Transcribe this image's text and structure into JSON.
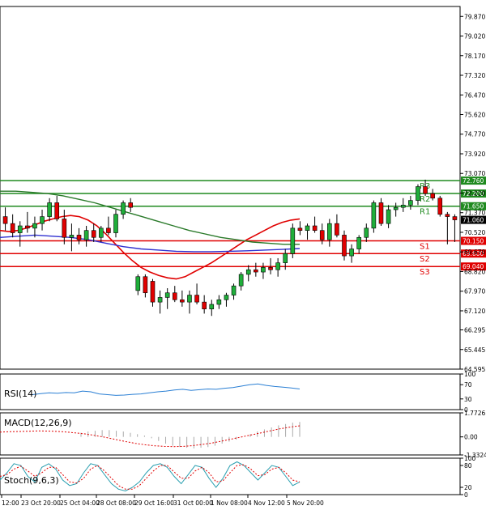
{
  "chart_data": [
    {
      "type": "candlestick",
      "panel": "price",
      "title": "",
      "y_ticks": [
        "79.870",
        "79.020",
        "78.170",
        "77.320",
        "76.470",
        "75.620",
        "74.770",
        "73.920",
        "73.070",
        "72.220",
        "71.370",
        "70.520",
        "69.670",
        "68.820",
        "67.970",
        "67.120",
        "66.295",
        "65.445",
        "64.595"
      ],
      "ylim": [
        64.595,
        80.3
      ],
      "last_price": "71.060",
      "levels": [
        {
          "name": "R3",
          "value": 72.76,
          "label": "72.760",
          "color": "#1f8a1f"
        },
        {
          "name": "R2",
          "value": 72.2,
          "label": "72.200",
          "color": "#1f8a1f"
        },
        {
          "name": "R1",
          "value": 71.65,
          "label": "71.650",
          "color": "#1f8a1f"
        },
        {
          "name": "S1",
          "value": 70.15,
          "label": "70.150",
          "color": "#e00000"
        },
        {
          "name": "S2",
          "value": 69.6,
          "label": "69.600",
          "color": "#e00000"
        },
        {
          "name": "S3",
          "value": 69.04,
          "label": "69.040",
          "color": "#e00000"
        }
      ],
      "candles": [
        {
          "o": 71.2,
          "h": 71.6,
          "l": 70.6,
          "c": 70.9
        },
        {
          "o": 70.9,
          "h": 71.3,
          "l": 70.3,
          "c": 70.5
        },
        {
          "o": 70.5,
          "h": 71.0,
          "l": 69.9,
          "c": 70.8
        },
        {
          "o": 70.8,
          "h": 71.4,
          "l": 70.5,
          "c": 70.7
        },
        {
          "o": 70.7,
          "h": 71.2,
          "l": 70.3,
          "c": 70.9
        },
        {
          "o": 70.9,
          "h": 71.5,
          "l": 70.6,
          "c": 71.2
        },
        {
          "o": 71.2,
          "h": 72.0,
          "l": 71.0,
          "c": 71.8
        },
        {
          "o": 71.8,
          "h": 72.1,
          "l": 71.0,
          "c": 71.1
        },
        {
          "o": 71.1,
          "h": 71.5,
          "l": 70.0,
          "c": 70.3
        },
        {
          "o": 70.3,
          "h": 70.9,
          "l": 69.7,
          "c": 70.4
        },
        {
          "o": 70.4,
          "h": 70.7,
          "l": 70.0,
          "c": 70.2
        },
        {
          "o": 70.2,
          "h": 70.8,
          "l": 69.9,
          "c": 70.6
        },
        {
          "o": 70.6,
          "h": 70.9,
          "l": 70.1,
          "c": 70.3
        },
        {
          "o": 70.3,
          "h": 70.8,
          "l": 70.1,
          "c": 70.7
        },
        {
          "o": 70.7,
          "h": 71.2,
          "l": 70.4,
          "c": 70.5
        },
        {
          "o": 70.5,
          "h": 71.5,
          "l": 70.3,
          "c": 71.3
        },
        {
          "o": 71.3,
          "h": 71.9,
          "l": 71.1,
          "c": 71.8
        },
        {
          "o": 71.8,
          "h": 72.0,
          "l": 71.4,
          "c": 71.6
        },
        {
          "o": 68.0,
          "h": 68.7,
          "l": 67.8,
          "c": 68.6
        },
        {
          "o": 68.6,
          "h": 68.7,
          "l": 67.7,
          "c": 67.9
        },
        {
          "o": 68.4,
          "h": 68.5,
          "l": 67.3,
          "c": 67.5
        },
        {
          "o": 67.5,
          "h": 68.0,
          "l": 67.0,
          "c": 67.7
        },
        {
          "o": 67.7,
          "h": 68.1,
          "l": 67.2,
          "c": 67.9
        },
        {
          "o": 67.9,
          "h": 68.2,
          "l": 67.5,
          "c": 67.6
        },
        {
          "o": 67.6,
          "h": 68.0,
          "l": 67.3,
          "c": 67.5
        },
        {
          "o": 67.5,
          "h": 68.0,
          "l": 67.0,
          "c": 67.8
        },
        {
          "o": 67.8,
          "h": 68.3,
          "l": 67.4,
          "c": 67.5
        },
        {
          "o": 67.5,
          "h": 67.8,
          "l": 67.0,
          "c": 67.2
        },
        {
          "o": 67.2,
          "h": 67.6,
          "l": 66.9,
          "c": 67.4
        },
        {
          "o": 67.4,
          "h": 67.8,
          "l": 67.2,
          "c": 67.6
        },
        {
          "o": 67.6,
          "h": 67.9,
          "l": 67.3,
          "c": 67.8
        },
        {
          "o": 67.8,
          "h": 68.3,
          "l": 67.6,
          "c": 68.2
        },
        {
          "o": 68.2,
          "h": 68.8,
          "l": 68.0,
          "c": 68.7
        },
        {
          "o": 68.7,
          "h": 69.1,
          "l": 68.4,
          "c": 68.9
        },
        {
          "o": 68.9,
          "h": 69.2,
          "l": 68.6,
          "c": 68.8
        },
        {
          "o": 68.8,
          "h": 69.2,
          "l": 68.5,
          "c": 69.0
        },
        {
          "o": 69.0,
          "h": 69.4,
          "l": 68.7,
          "c": 68.9
        },
        {
          "o": 68.9,
          "h": 69.4,
          "l": 68.6,
          "c": 69.2
        },
        {
          "o": 69.2,
          "h": 69.8,
          "l": 68.9,
          "c": 69.6
        },
        {
          "o": 69.6,
          "h": 70.9,
          "l": 69.4,
          "c": 70.7
        },
        {
          "o": 70.7,
          "h": 71.0,
          "l": 70.4,
          "c": 70.6
        },
        {
          "o": 70.6,
          "h": 70.9,
          "l": 70.2,
          "c": 70.8
        },
        {
          "o": 70.8,
          "h": 71.2,
          "l": 70.5,
          "c": 70.6
        },
        {
          "o": 70.6,
          "h": 70.9,
          "l": 70.0,
          "c": 70.2
        },
        {
          "o": 70.2,
          "h": 71.1,
          "l": 69.9,
          "c": 70.9
        },
        {
          "o": 70.9,
          "h": 71.3,
          "l": 70.3,
          "c": 70.4
        },
        {
          "o": 70.4,
          "h": 70.6,
          "l": 69.3,
          "c": 69.5
        },
        {
          "o": 69.5,
          "h": 70.0,
          "l": 69.2,
          "c": 69.8
        },
        {
          "o": 69.8,
          "h": 70.4,
          "l": 69.6,
          "c": 70.3
        },
        {
          "o": 70.3,
          "h": 70.9,
          "l": 70.1,
          "c": 70.7
        },
        {
          "o": 70.7,
          "h": 71.9,
          "l": 70.5,
          "c": 71.8
        },
        {
          "o": 71.8,
          "h": 72.0,
          "l": 70.8,
          "c": 70.9
        },
        {
          "o": 70.9,
          "h": 71.7,
          "l": 70.7,
          "c": 71.5
        },
        {
          "o": 71.5,
          "h": 71.8,
          "l": 71.2,
          "c": 71.6
        },
        {
          "o": 71.6,
          "h": 72.0,
          "l": 71.4,
          "c": 71.7
        },
        {
          "o": 71.7,
          "h": 72.1,
          "l": 71.5,
          "c": 71.9
        },
        {
          "o": 71.9,
          "h": 72.6,
          "l": 71.7,
          "c": 72.5
        },
        {
          "o": 72.5,
          "h": 72.8,
          "l": 72.1,
          "c": 72.2
        },
        {
          "o": 72.2,
          "h": 72.4,
          "l": 71.9,
          "c": 72.0
        },
        {
          "o": 72.0,
          "h": 72.1,
          "l": 71.2,
          "c": 71.3
        },
        {
          "o": 71.3,
          "h": 71.4,
          "l": 70.0,
          "c": 71.2
        },
        {
          "o": 71.2,
          "h": 71.3,
          "l": 70.1,
          "c": 71.06
        }
      ],
      "series": [
        {
          "kind": "ma",
          "color": "#e00000",
          "values": [
            70.6,
            70.55,
            70.6,
            70.7,
            70.85,
            71.0,
            71.1,
            71.2,
            71.25,
            71.2,
            71.05,
            70.8,
            70.45,
            70.05,
            69.65,
            69.3,
            69.0,
            68.8,
            68.65,
            68.55,
            68.5,
            68.6,
            68.8,
            69.0,
            69.2,
            69.45,
            69.7,
            69.95,
            70.2,
            70.4,
            70.6,
            70.8,
            70.95,
            71.05,
            71.1
          ]
        },
        {
          "kind": "ma",
          "color": "#2a7a2a",
          "values": [
            72.3,
            72.3,
            72.25,
            72.2,
            72.1,
            71.95,
            71.8,
            71.6,
            71.4,
            71.2,
            71.0,
            70.8,
            70.6,
            70.45,
            70.3,
            70.2,
            70.1,
            70.05,
            70.0,
            70.0
          ]
        },
        {
          "kind": "ma",
          "color": "#3030d0",
          "values": [
            70.3,
            70.35,
            70.4,
            70.35,
            70.3,
            70.2,
            70.05,
            69.9,
            69.8,
            69.75,
            69.7,
            69.68,
            69.68,
            69.7,
            69.72,
            69.75,
            69.78,
            69.82
          ]
        }
      ]
    },
    {
      "type": "line",
      "panel": "rsi",
      "title": "RSI(14)",
      "y_ticks": [
        "100",
        "70",
        "30",
        "0"
      ],
      "ylim": [
        0,
        100
      ],
      "values": [
        42,
        45,
        47,
        46,
        48,
        47,
        52,
        50,
        44,
        42,
        40,
        41,
        43,
        44,
        47,
        50,
        52,
        55,
        57,
        54,
        56,
        58,
        57,
        60,
        62,
        66,
        70,
        72,
        68,
        65,
        63,
        61,
        58
      ]
    },
    {
      "type": "bar",
      "panel": "macd",
      "title": "MACD(12,26,9)",
      "y_ticks": [
        "1.7726",
        "0.00",
        "-1.3324"
      ],
      "ylim": [
        -1.3324,
        1.7726
      ],
      "values": [
        0.3,
        0.4,
        0.45,
        0.5,
        0.5,
        0.45,
        0.4,
        0.3,
        0.2,
        0.1,
        -0.1,
        -0.3,
        -0.5,
        -0.65,
        -0.75,
        -0.8,
        -0.85,
        -0.8,
        -0.75,
        -0.65,
        -0.5,
        -0.35,
        -0.2,
        0.0,
        0.2,
        0.4,
        0.55,
        0.7,
        0.85,
        0.95,
        1.05,
        1.1
      ],
      "signal": [
        0.35,
        0.38,
        0.4,
        0.42,
        0.44,
        0.43,
        0.4,
        0.35,
        0.28,
        0.2,
        0.08,
        -0.05,
        -0.2,
        -0.35,
        -0.48,
        -0.58,
        -0.66,
        -0.7,
        -0.72,
        -0.7,
        -0.64,
        -0.55,
        -0.44,
        -0.3,
        -0.15,
        0.0,
        0.15,
        0.3,
        0.45,
        0.6,
        0.72,
        0.82
      ]
    },
    {
      "type": "line",
      "panel": "stoch",
      "title": "Stoch(9,6,3)",
      "y_ticks": [
        "100",
        "80",
        "20",
        "0"
      ],
      "ylim": [
        0,
        100
      ],
      "k": [
        40,
        60,
        85,
        80,
        50,
        35,
        75,
        85,
        70,
        40,
        25,
        30,
        60,
        85,
        80,
        55,
        30,
        15,
        10,
        20,
        35,
        60,
        80,
        85,
        75,
        50,
        30,
        55,
        80,
        75,
        45,
        20,
        45,
        80,
        90,
        80,
        60,
        40,
        60,
        80,
        75,
        50,
        25,
        35
      ],
      "d": [
        50,
        55,
        70,
        78,
        65,
        50,
        60,
        75,
        75,
        55,
        35,
        32,
        45,
        70,
        80,
        65,
        45,
        25,
        15,
        15,
        25,
        45,
        65,
        80,
        80,
        62,
        45,
        45,
        65,
        75,
        60,
        35,
        38,
        60,
        80,
        82,
        70,
        52,
        55,
        70,
        75,
        60,
        40,
        35
      ]
    },
    {
      "type": "axis",
      "panel": "time",
      "x_ticks": [
        "12:00",
        "23 Oct 20:00",
        "25 Oct 04:00",
        "28 Oct 08:00",
        "29 Oct 16:00",
        "31 Oct 00:00",
        "1 Nov 08:00",
        "4 Nov 12:00",
        "5 Nov 20:00"
      ]
    }
  ]
}
